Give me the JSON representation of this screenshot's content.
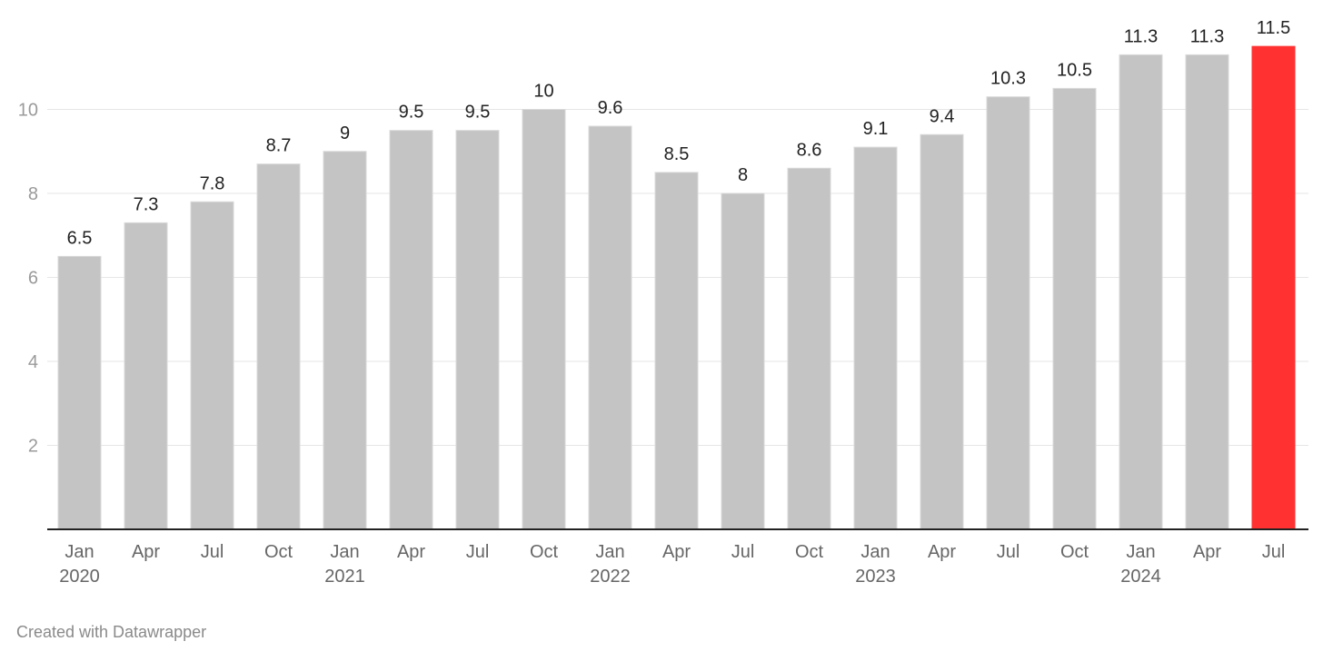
{
  "chart_data": {
    "type": "bar",
    "categories": [
      "Jan 2020",
      "Apr",
      "Jul",
      "Oct",
      "Jan 2021",
      "Apr",
      "Jul",
      "Oct",
      "Jan 2022",
      "Apr",
      "Jul",
      "Oct",
      "Jan 2023",
      "Apr",
      "Jul",
      "Oct",
      "Jan 2024",
      "Apr",
      "Jul"
    ],
    "values": [
      6.5,
      7.3,
      7.8,
      8.7,
      9,
      9.5,
      9.5,
      10,
      9.6,
      8.5,
      8,
      8.6,
      9.1,
      9.4,
      10.3,
      10.5,
      11.3,
      11.3,
      11.5
    ],
    "data_labels": [
      "6.5",
      "7.3",
      "7.8",
      "8.7",
      "9",
      "9.5",
      "9.5",
      "10",
      "9.6",
      "8.5",
      "8",
      "8.6",
      "9.1",
      "9.4",
      "10.3",
      "10.5",
      "11.3",
      "11.3",
      "11.5"
    ],
    "x_tick_labels": [
      [
        "Jan",
        "2020"
      ],
      [
        "Apr"
      ],
      [
        "Jul"
      ],
      [
        "Oct"
      ],
      [
        "Jan",
        "2021"
      ],
      [
        "Apr"
      ],
      [
        "Jul"
      ],
      [
        "Oct"
      ],
      [
        "Jan",
        "2022"
      ],
      [
        "Apr"
      ],
      [
        "Jul"
      ],
      [
        "Oct"
      ],
      [
        "Jan",
        "2023"
      ],
      [
        "Apr"
      ],
      [
        "Jul"
      ],
      [
        "Oct"
      ],
      [
        "Jan",
        "2024"
      ],
      [
        "Apr"
      ],
      [
        "Jul"
      ]
    ],
    "y_ticks": [
      2,
      4,
      6,
      8,
      10
    ],
    "ylim": [
      0,
      12
    ],
    "grid": true,
    "colors": {
      "default": "#c4c4c4",
      "highlight": "#ff3131",
      "highlight_index": 18
    },
    "title": "",
    "xlabel": "",
    "ylabel": ""
  },
  "footer": {
    "credit": "Created with Datawrapper"
  }
}
